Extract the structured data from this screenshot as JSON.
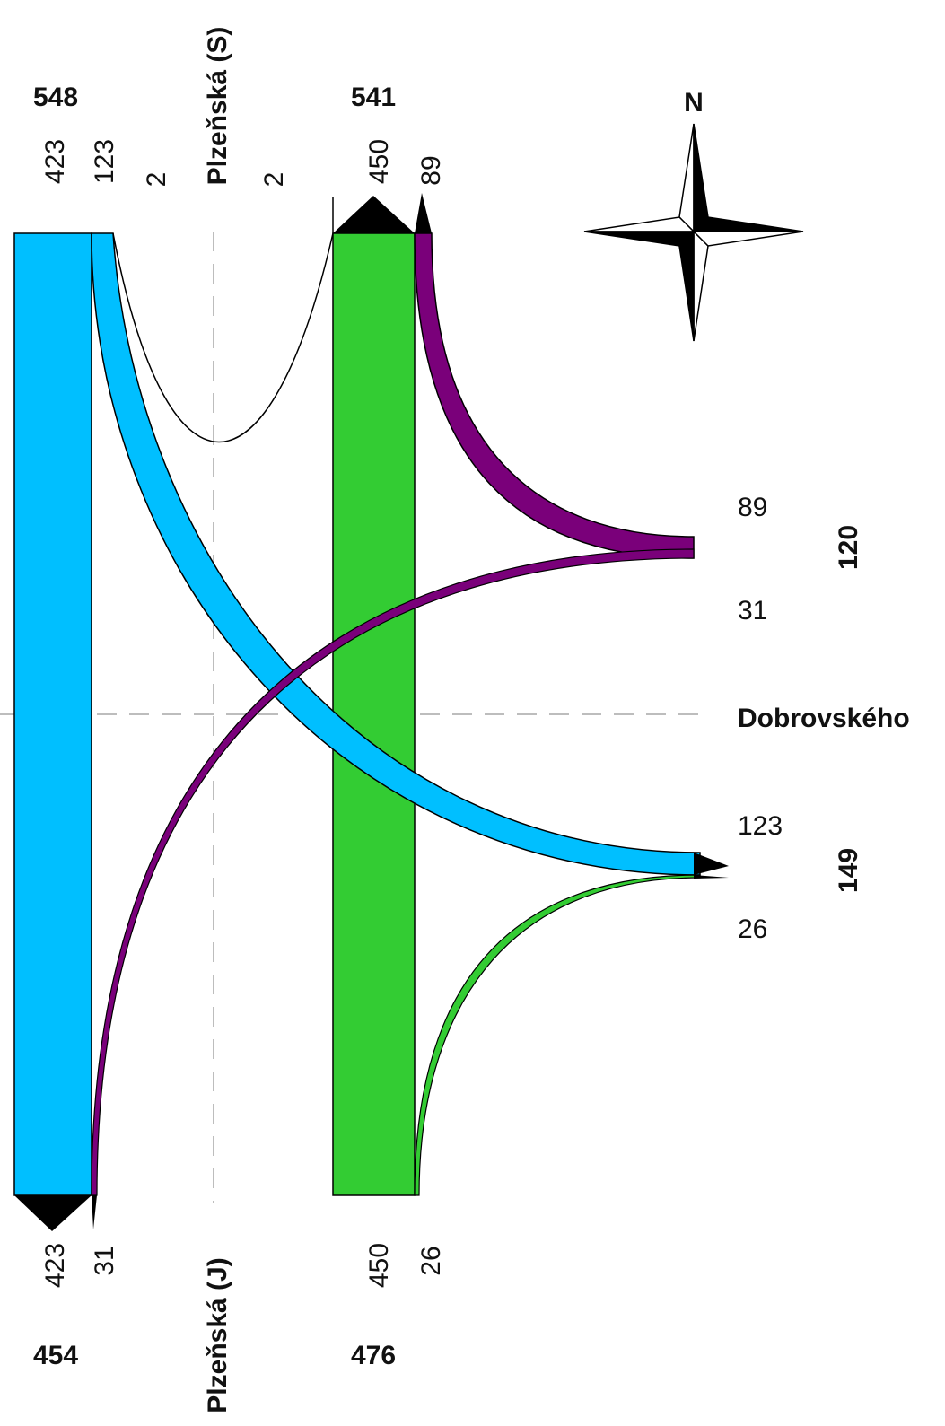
{
  "roads": {
    "north": "Plzeňská (S)",
    "south": "Plzeňská (J)",
    "east": "Dobrovského"
  },
  "compass": {
    "label": "N"
  },
  "colors": {
    "northbound_through": "#00bfff",
    "southbound_through": "#33cc33",
    "east_right": "#7a007a",
    "line": "#000000",
    "arrow": "#000000",
    "axis": "#bdbdbd"
  },
  "north_arm": {
    "total_left": "548",
    "total_right": "541",
    "lane_values": [
      "423",
      "123",
      "2",
      "2",
      "450",
      "89"
    ]
  },
  "south_arm": {
    "total_left": "454",
    "total_right": "476",
    "lane_values": [
      "423",
      "31",
      "450",
      "26"
    ]
  },
  "east_arm": {
    "upper_in": "89",
    "upper_out": "31",
    "upper_total": "120",
    "lower_in": "123",
    "lower_out": "26",
    "lower_total": "149"
  }
}
